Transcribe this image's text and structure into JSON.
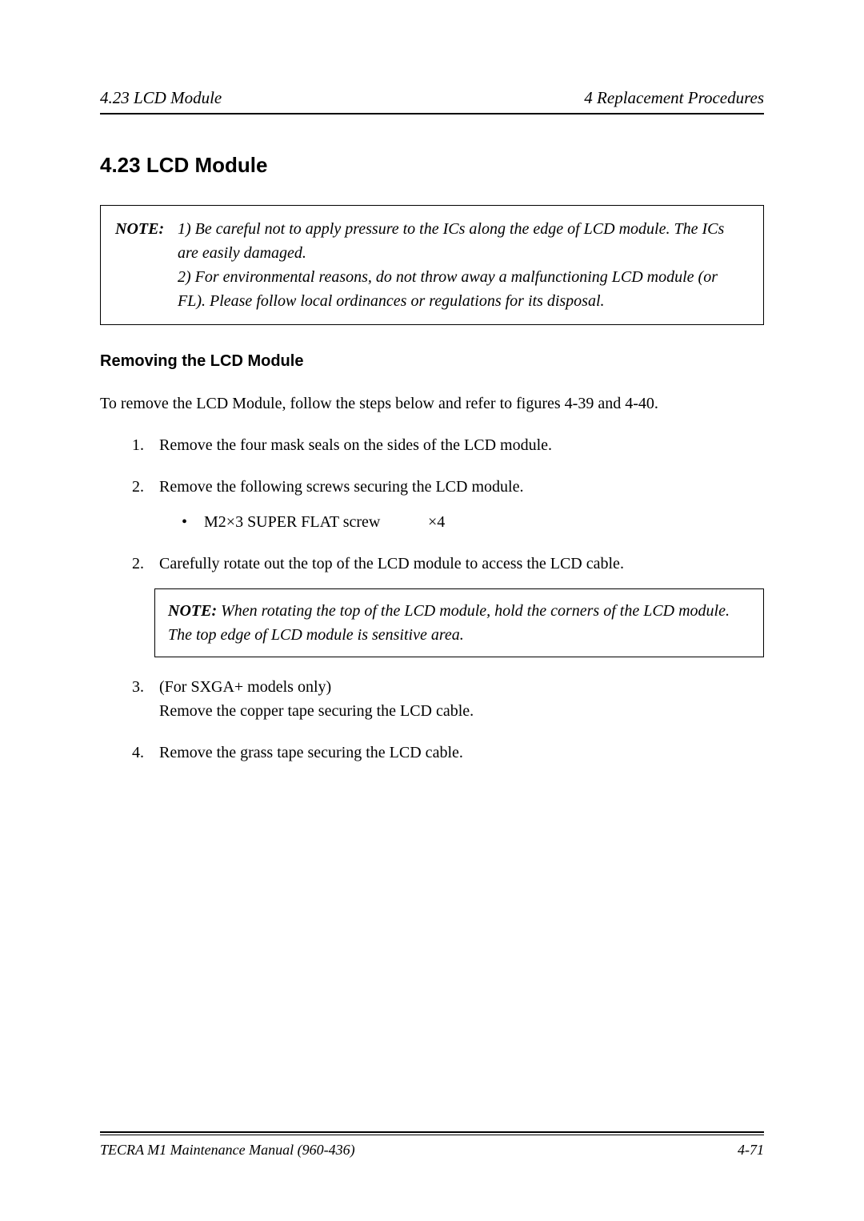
{
  "header": {
    "left": "4.23  LCD Module",
    "right": "4 Replacement Procedures"
  },
  "section": {
    "title": "4.23  LCD Module"
  },
  "note_main": {
    "label": "NOTE:",
    "line1": "1)  Be careful not to apply pressure to the ICs along the edge of LCD module. The ICs are easily damaged.",
    "line2": "2)  For environmental reasons, do not throw away a malfunctioning LCD module (or FL).  Please follow local ordinances or regulations for its disposal."
  },
  "subhead": "Removing the LCD Module",
  "intro": "To remove the LCD Module, follow the steps below and refer to figures 4-39 and 4-40.",
  "steps": [
    {
      "num": "1.",
      "text": "Remove the four mask seals on the sides of the LCD module."
    },
    {
      "num": "2.",
      "text": "Remove the following screws securing the LCD module.",
      "bullet_spec": "M2×3  SUPER FLAT screw",
      "bullet_qty": "×4"
    },
    {
      "num": "2.",
      "text": "Carefully rotate out the top of the LCD module to access the LCD cable.",
      "inner_note_label": "NOTE:",
      "inner_note_text": "When rotating the top of the LCD module, hold the corners of the LCD module. The top edge of LCD module is sensitive area."
    },
    {
      "num": "3.",
      "text_a": "(For SXGA+ models only)",
      "text_b": "Remove the copper tape securing the LCD cable."
    },
    {
      "num": "4.",
      "text": "Remove the grass tape securing the LCD cable."
    }
  ],
  "footer": {
    "left": "TECRA M1 Maintenance Manual (960-436)",
    "right": "4-71"
  }
}
